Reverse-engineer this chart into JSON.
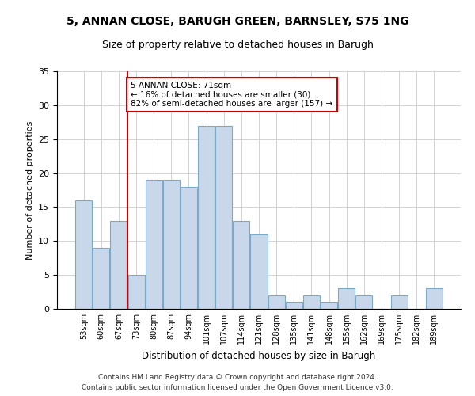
{
  "title1": "5, ANNAN CLOSE, BARUGH GREEN, BARNSLEY, S75 1NG",
  "title2": "Size of property relative to detached houses in Barugh",
  "xlabel": "Distribution of detached houses by size in Barugh",
  "ylabel": "Number of detached properties",
  "bin_labels": [
    "53sqm",
    "60sqm",
    "67sqm",
    "73sqm",
    "80sqm",
    "87sqm",
    "94sqm",
    "101sqm",
    "107sqm",
    "114sqm",
    "121sqm",
    "128sqm",
    "135sqm",
    "141sqm",
    "148sqm",
    "155sqm",
    "162sqm",
    "169sqm",
    "175sqm",
    "182sqm",
    "189sqm"
  ],
  "bar_values": [
    16,
    9,
    13,
    5,
    19,
    19,
    18,
    27,
    27,
    13,
    11,
    2,
    1,
    2,
    1,
    3,
    2,
    0,
    2,
    0,
    3
  ],
  "bar_color": "#c8d8ea",
  "bar_edge_color": "#7aaac8",
  "annotation_title": "5 ANNAN CLOSE: 71sqm",
  "annotation_line1": "← 16% of detached houses are smaller (30)",
  "annotation_line2": "82% of semi-detached houses are larger (157) →",
  "vline_color": "#cc0000",
  "annotation_box_edge": "#cc0000",
  "footer1": "Contains HM Land Registry data © Crown copyright and database right 2024.",
  "footer2": "Contains public sector information licensed under the Open Government Licence v3.0.",
  "ylim": [
    0,
    35
  ],
  "yticks": [
    0,
    5,
    10,
    15,
    20,
    25,
    30,
    35
  ],
  "grid_color": "#cccccc",
  "title1_fontsize": 10,
  "title2_fontsize": 9
}
